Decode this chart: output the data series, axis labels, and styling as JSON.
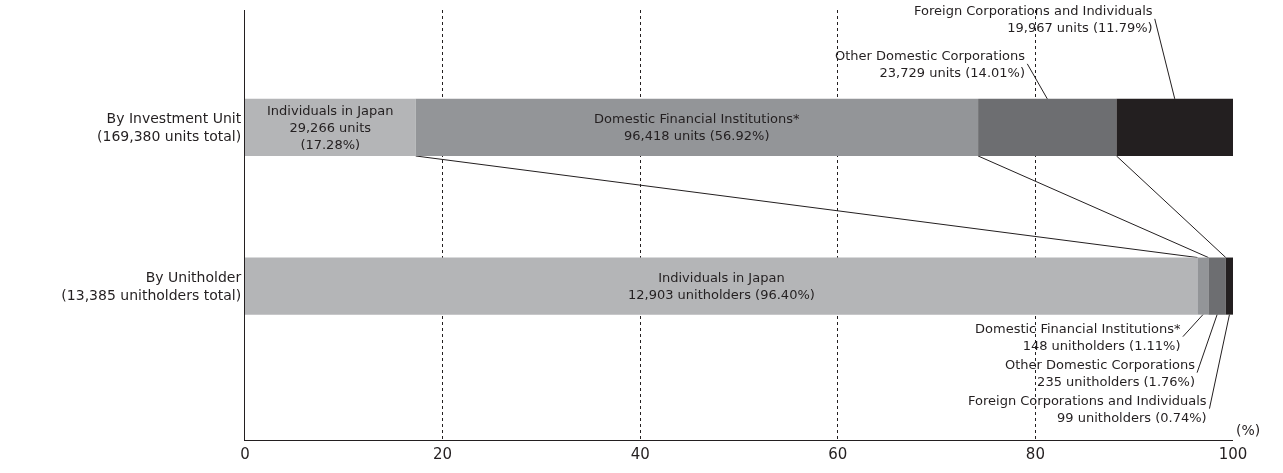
{
  "chart_data": {
    "type": "bar",
    "orientation": "horizontal",
    "stacked": true,
    "xlabel": "(%)",
    "xlim": [
      0,
      100
    ],
    "xticks": [
      0,
      20,
      40,
      60,
      80,
      100
    ],
    "grid": "x",
    "categories": [
      "By Investment Unit\n(169,380 units total)",
      "By Unitholder\n(13,385 unitholders total)"
    ],
    "series": [
      {
        "name": "Individuals in Japan",
        "color": "#b4b5b7",
        "values": [
          17.28,
          96.4
        ],
        "value_labels": [
          "29,266 units\n(17.28%)",
          "12,903 unitholders (96.40%)"
        ]
      },
      {
        "name": "Domestic Financial Institutions*",
        "color": "#939598",
        "values": [
          56.92,
          1.11
        ],
        "value_labels": [
          "96,418 units (56.92%)",
          "148 unitholders (1.11%)"
        ]
      },
      {
        "name": "Other Domestic Corporations",
        "color": "#6d6e71",
        "values": [
          14.01,
          1.76
        ],
        "value_labels": [
          "23,729 units (14.01%)",
          "235 unitholders (1.76%)"
        ]
      },
      {
        "name": "Foreign Corporations and Individuals",
        "color": "#231f20",
        "values": [
          11.79,
          0.74
        ],
        "value_labels": [
          "19,967 units (11.79%)",
          "99 unitholders (0.74%)"
        ]
      }
    ]
  }
}
